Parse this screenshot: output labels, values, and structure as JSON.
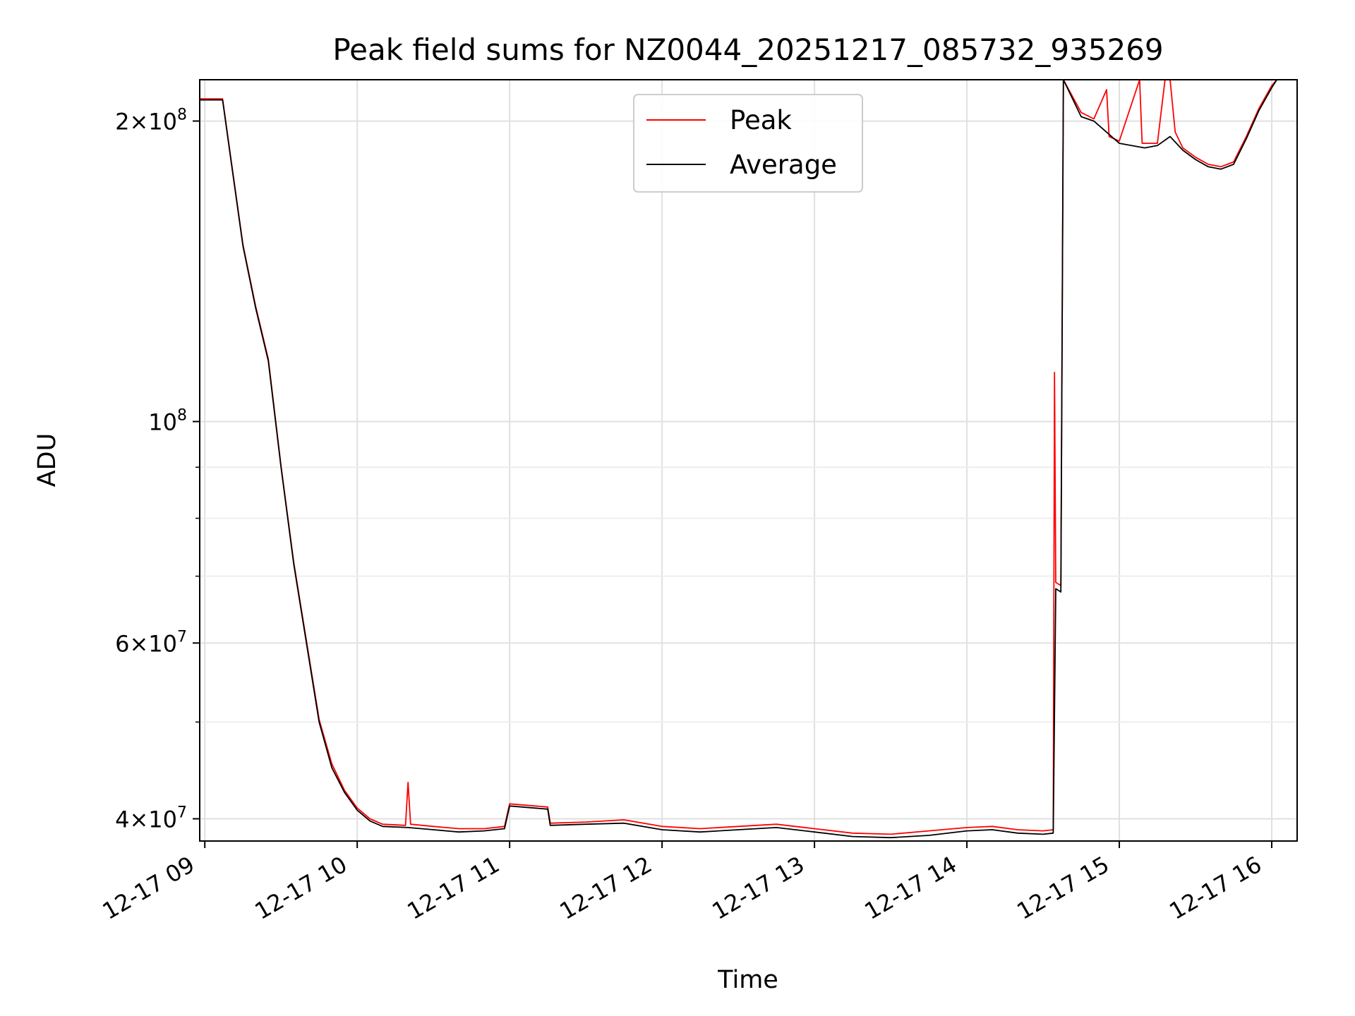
{
  "chart_data": {
    "type": "line",
    "title": "Peak field sums for NZ0044_20251217_085732_935269",
    "xlabel": "Time",
    "ylabel": "ADU",
    "yscale": "log",
    "xlim": [
      "2025-12-17 08:58",
      "2025-12-17 16:10"
    ],
    "ylim": [
      38000000,
      220000000
    ],
    "grid": true,
    "legend": {
      "location": "top-center",
      "entries": [
        "Peak",
        "Average"
      ]
    },
    "x_ticks": [
      "12-17 09",
      "12-17 10",
      "12-17 11",
      "12-17 12",
      "12-17 13",
      "12-17 14",
      "12-17 15",
      "12-17 16"
    ],
    "y_ticks": [
      {
        "value": 40000000,
        "base": "4",
        "exponent": "7"
      },
      {
        "value": 60000000,
        "base": "6",
        "exponent": "7"
      },
      {
        "value": 100000000,
        "base": "10",
        "exponent": "8"
      },
      {
        "value": 200000000,
        "base": "2",
        "exponent": "8"
      }
    ],
    "series": [
      {
        "name": "Average",
        "color": "#000000",
        "points": [
          [
            "2025-12-17 08:58",
            210000000
          ],
          [
            "2025-12-17 09:07",
            210000000
          ],
          [
            "2025-12-17 09:10",
            185000000
          ],
          [
            "2025-12-17 09:15",
            150000000
          ],
          [
            "2025-12-17 09:20",
            130000000
          ],
          [
            "2025-12-17 09:25",
            115000000
          ],
          [
            "2025-12-17 09:30",
            90000000
          ],
          [
            "2025-12-17 09:35",
            72000000
          ],
          [
            "2025-12-17 09:40",
            60000000
          ],
          [
            "2025-12-17 09:45",
            50000000
          ],
          [
            "2025-12-17 09:50",
            45000000
          ],
          [
            "2025-12-17 09:55",
            42500000
          ],
          [
            "2025-12-17 10:00",
            40800000
          ],
          [
            "2025-12-17 10:05",
            39800000
          ],
          [
            "2025-12-17 10:10",
            39300000
          ],
          [
            "2025-12-17 10:20",
            39200000
          ],
          [
            "2025-12-17 10:30",
            39000000
          ],
          [
            "2025-12-17 10:40",
            38800000
          ],
          [
            "2025-12-17 10:50",
            38900000
          ],
          [
            "2025-12-17 10:58",
            39100000
          ],
          [
            "2025-12-17 11:00",
            41200000
          ],
          [
            "2025-12-17 11:10",
            41000000
          ],
          [
            "2025-12-17 11:15",
            40900000
          ],
          [
            "2025-12-17 11:16",
            39400000
          ],
          [
            "2025-12-17 11:30",
            39500000
          ],
          [
            "2025-12-17 11:45",
            39600000
          ],
          [
            "2025-12-17 12:00",
            39000000
          ],
          [
            "2025-12-17 12:15",
            38800000
          ],
          [
            "2025-12-17 12:30",
            39000000
          ],
          [
            "2025-12-17 12:45",
            39200000
          ],
          [
            "2025-12-17 13:00",
            38800000
          ],
          [
            "2025-12-17 13:15",
            38400000
          ],
          [
            "2025-12-17 13:30",
            38300000
          ],
          [
            "2025-12-17 13:45",
            38500000
          ],
          [
            "2025-12-17 14:00",
            38900000
          ],
          [
            "2025-12-17 14:10",
            39000000
          ],
          [
            "2025-12-17 14:20",
            38700000
          ],
          [
            "2025-12-17 14:30",
            38600000
          ],
          [
            "2025-12-17 14:34",
            38700000
          ],
          [
            "2025-12-17 14:35",
            68000000
          ],
          [
            "2025-12-17 14:37",
            67500000
          ],
          [
            "2025-12-17 14:38",
            220000000
          ],
          [
            "2025-12-17 14:45",
            202000000
          ],
          [
            "2025-12-17 14:50",
            200000000
          ],
          [
            "2025-12-17 15:00",
            190000000
          ],
          [
            "2025-12-17 15:10",
            188000000
          ],
          [
            "2025-12-17 15:15",
            189000000
          ],
          [
            "2025-12-17 15:20",
            193000000
          ],
          [
            "2025-12-17 15:25",
            187000000
          ],
          [
            "2025-12-17 15:30",
            183000000
          ],
          [
            "2025-12-17 15:35",
            180000000
          ],
          [
            "2025-12-17 15:40",
            179000000
          ],
          [
            "2025-12-17 15:45",
            181000000
          ],
          [
            "2025-12-17 15:50",
            192000000
          ],
          [
            "2025-12-17 15:55",
            205000000
          ],
          [
            "2025-12-17 16:00",
            216000000
          ],
          [
            "2025-12-17 16:02",
            220000000
          ],
          [
            "2025-12-17 16:10",
            220000000
          ]
        ]
      },
      {
        "name": "Peak",
        "color": "#ff0000",
        "points": [
          [
            "2025-12-17 08:58",
            210500000
          ],
          [
            "2025-12-17 09:07",
            210500000
          ],
          [
            "2025-12-17 09:10",
            185500000
          ],
          [
            "2025-12-17 09:15",
            150500000
          ],
          [
            "2025-12-17 09:20",
            130500000
          ],
          [
            "2025-12-17 09:25",
            115500000
          ],
          [
            "2025-12-17 09:30",
            90300000
          ],
          [
            "2025-12-17 09:35",
            72300000
          ],
          [
            "2025-12-17 09:40",
            60300000
          ],
          [
            "2025-12-17 09:45",
            50300000
          ],
          [
            "2025-12-17 09:50",
            45400000
          ],
          [
            "2025-12-17 09:55",
            42700000
          ],
          [
            "2025-12-17 10:00",
            41000000
          ],
          [
            "2025-12-17 10:05",
            40000000
          ],
          [
            "2025-12-17 10:10",
            39500000
          ],
          [
            "2025-12-17 10:19",
            39400000
          ],
          [
            "2025-12-17 10:20",
            43500000
          ],
          [
            "2025-12-17 10:21",
            39500000
          ],
          [
            "2025-12-17 10:30",
            39300000
          ],
          [
            "2025-12-17 10:40",
            39100000
          ],
          [
            "2025-12-17 10:50",
            39100000
          ],
          [
            "2025-12-17 10:58",
            39300000
          ],
          [
            "2025-12-17 11:00",
            41400000
          ],
          [
            "2025-12-17 11:10",
            41200000
          ],
          [
            "2025-12-17 11:15",
            41100000
          ],
          [
            "2025-12-17 11:16",
            39600000
          ],
          [
            "2025-12-17 11:30",
            39700000
          ],
          [
            "2025-12-17 11:45",
            39900000
          ],
          [
            "2025-12-17 12:00",
            39300000
          ],
          [
            "2025-12-17 12:15",
            39100000
          ],
          [
            "2025-12-17 12:30",
            39300000
          ],
          [
            "2025-12-17 12:45",
            39500000
          ],
          [
            "2025-12-17 13:00",
            39100000
          ],
          [
            "2025-12-17 13:15",
            38700000
          ],
          [
            "2025-12-17 13:30",
            38600000
          ],
          [
            "2025-12-17 13:45",
            38900000
          ],
          [
            "2025-12-17 14:00",
            39200000
          ],
          [
            "2025-12-17 14:10",
            39300000
          ],
          [
            "2025-12-17 14:20",
            39000000
          ],
          [
            "2025-12-17 14:30",
            38900000
          ],
          [
            "2025-12-17 14:34",
            39000000
          ],
          [
            "2025-12-17 14:34:30",
            112000000
          ],
          [
            "2025-12-17 14:35",
            69000000
          ],
          [
            "2025-12-17 14:37",
            68500000
          ],
          [
            "2025-12-17 14:38",
            220000000
          ],
          [
            "2025-12-17 14:45",
            204000000
          ],
          [
            "2025-12-17 14:50",
            201000000
          ],
          [
            "2025-12-17 14:55",
            215000000
          ],
          [
            "2025-12-17 14:56",
            193000000
          ],
          [
            "2025-12-17 15:00",
            191000000
          ],
          [
            "2025-12-17 15:08",
            220000000
          ],
          [
            "2025-12-17 15:09",
            190000000
          ],
          [
            "2025-12-17 15:15",
            190000000
          ],
          [
            "2025-12-17 15:18",
            220000000
          ],
          [
            "2025-12-17 15:20",
            220000000
          ],
          [
            "2025-12-17 15:22",
            195000000
          ],
          [
            "2025-12-17 15:25",
            188000000
          ],
          [
            "2025-12-17 15:30",
            184000000
          ],
          [
            "2025-12-17 15:35",
            181000000
          ],
          [
            "2025-12-17 15:40",
            180000000
          ],
          [
            "2025-12-17 15:45",
            182000000
          ],
          [
            "2025-12-17 15:50",
            193000000
          ],
          [
            "2025-12-17 15:55",
            206000000
          ],
          [
            "2025-12-17 16:00",
            217000000
          ],
          [
            "2025-12-17 16:02",
            220000000
          ],
          [
            "2025-12-17 16:10",
            220000000
          ]
        ]
      }
    ]
  }
}
